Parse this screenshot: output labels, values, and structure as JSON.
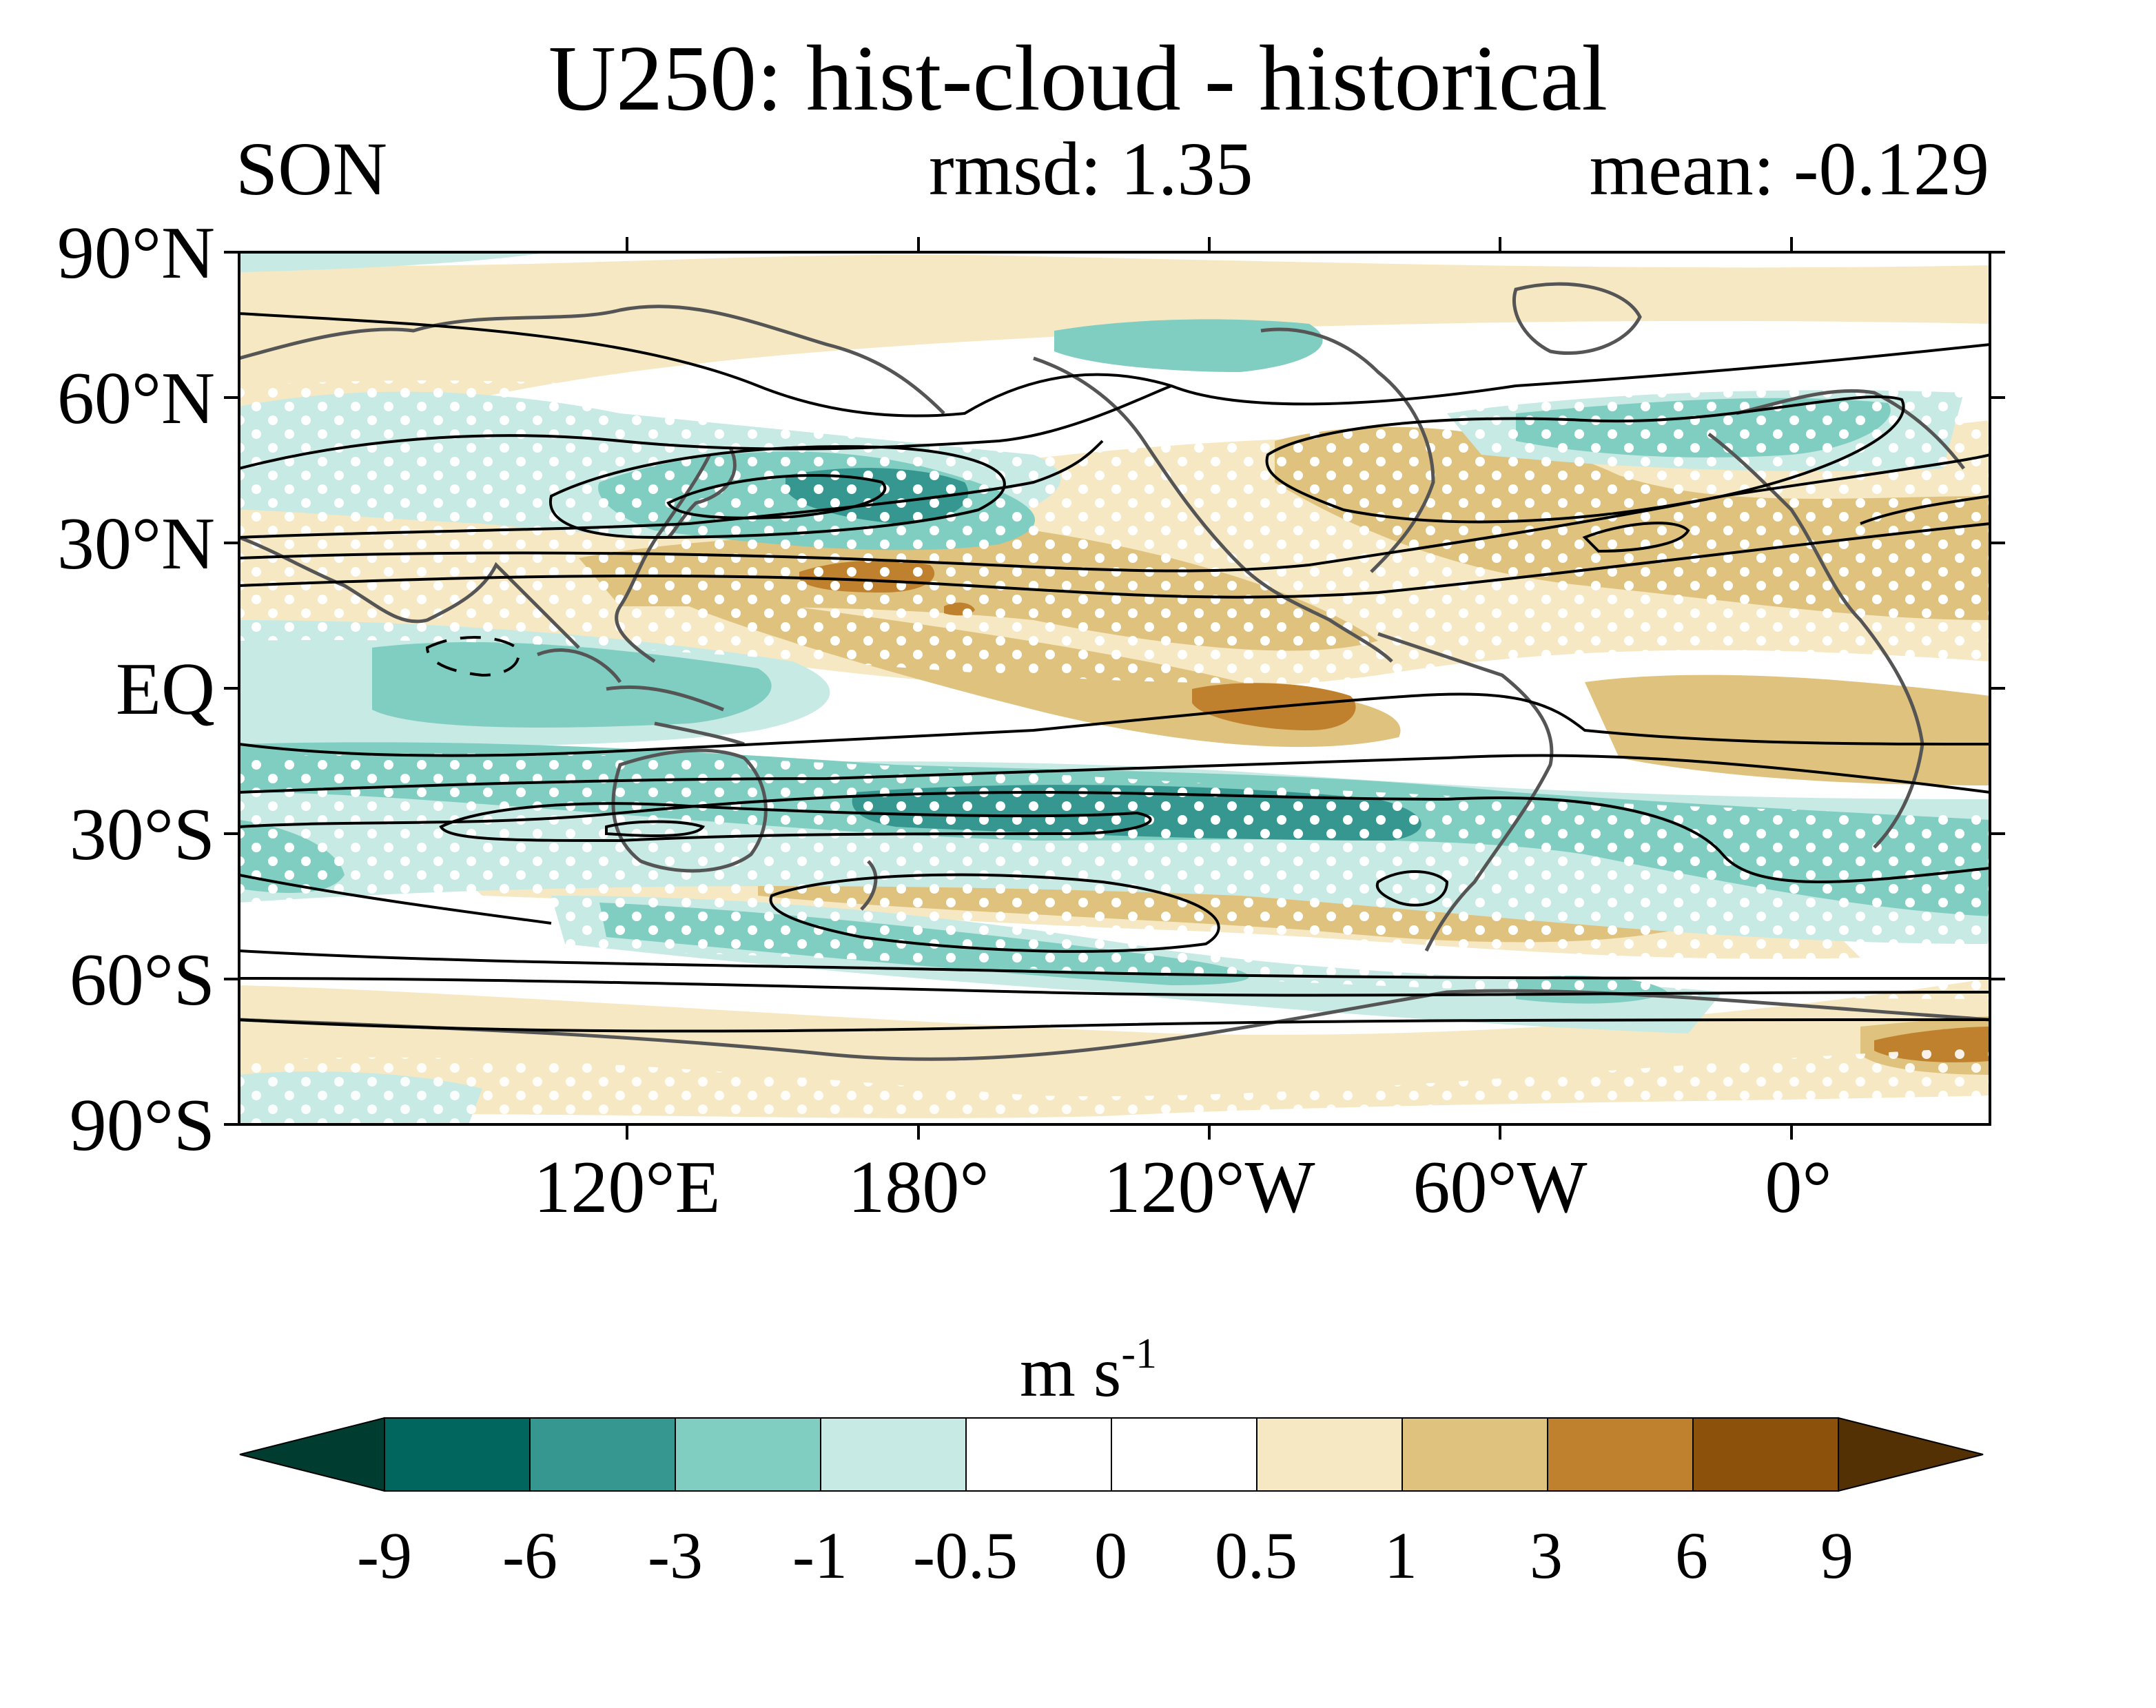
{
  "title": "U250: hist-cloud - historical",
  "season": "SON",
  "rmsd_label": "rmsd: 1.35",
  "mean_label": "mean: -0.129",
  "latitude_labels": [
    "90°N",
    "60°N",
    "30°N",
    "EQ",
    "30°S",
    "60°S",
    "90°S"
  ],
  "longitude_labels": [
    "120°E",
    "180°",
    "120°W",
    "60°W",
    "0°"
  ],
  "colorbar": {
    "units": "m s",
    "units_exponent": "-1",
    "tick_labels": [
      "-9",
      "-6",
      "-3",
      "-1",
      "-0.5",
      "0",
      "0.5",
      "1",
      "3",
      "6",
      "9"
    ],
    "under_color": "#003c30",
    "over_color": "#543005",
    "colors": [
      "#01665e",
      "#35978f",
      "#80cdc1",
      "#c7eae5",
      "#ffffff",
      "#ffffff",
      "#f6e8c3",
      "#dfc27d",
      "#bf812d",
      "#8c510a"
    ]
  },
  "colors": {
    "coastline": "#555555",
    "contour": "#000000",
    "stipple": "#ffffff"
  }
}
